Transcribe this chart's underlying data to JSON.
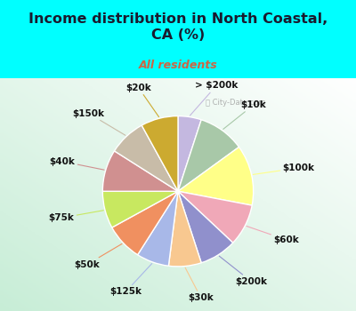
{
  "title": "Income distribution in North Coastal,\nCA (%)",
  "subtitle": "All residents",
  "title_color": "#1a1a2e",
  "subtitle_color": "#cc6644",
  "background_outer": "#00ffff",
  "watermark": "City-Data.com",
  "labels": [
    "> $200k",
    "$10k",
    "$100k",
    "$60k",
    "$200k",
    "$30k",
    "$125k",
    "$50k",
    "$75k",
    "$40k",
    "$150k",
    "$20k"
  ],
  "values": [
    5,
    10,
    13,
    9,
    8,
    7,
    7,
    8,
    8,
    9,
    8,
    8
  ],
  "colors": [
    "#c4b8e0",
    "#a8c8a8",
    "#ffff88",
    "#f0a8b8",
    "#9090cc",
    "#f8c890",
    "#a8b8e8",
    "#f09060",
    "#c8e860",
    "#d09090",
    "#c8bca8",
    "#ccaa30"
  ],
  "label_fontsize": 7.5,
  "label_color": "#111111"
}
